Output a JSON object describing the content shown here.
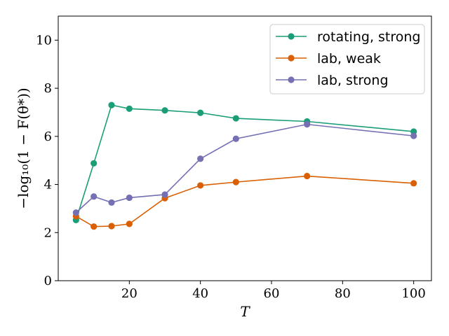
{
  "chart_data": {
    "type": "line",
    "title": "",
    "xlabel": "T",
    "ylabel": "−log₁₀(1 − F(θ*))",
    "xlim": [
      0,
      105
    ],
    "ylim": [
      0,
      11
    ],
    "xticks": [
      20,
      40,
      60,
      80,
      100
    ],
    "yticks": [
      0,
      2,
      4,
      6,
      8,
      10
    ],
    "x": [
      5,
      10,
      15,
      20,
      30,
      40,
      50,
      70,
      100
    ],
    "legend_position": "top-right",
    "series": [
      {
        "name": "rotating, strong",
        "color": "#1b9e77",
        "values": [
          2.52,
          4.88,
          7.3,
          7.15,
          7.08,
          6.98,
          6.75,
          6.62,
          6.2
        ]
      },
      {
        "name": "lab, weak",
        "color": "#d95f02",
        "values": [
          2.68,
          2.25,
          2.27,
          2.36,
          3.43,
          3.96,
          4.1,
          4.35,
          4.05
        ]
      },
      {
        "name": "lab, strong",
        "color": "#7570b3",
        "values": [
          2.83,
          3.5,
          3.25,
          3.45,
          3.58,
          5.07,
          5.9,
          6.5,
          6.02
        ]
      }
    ]
  }
}
